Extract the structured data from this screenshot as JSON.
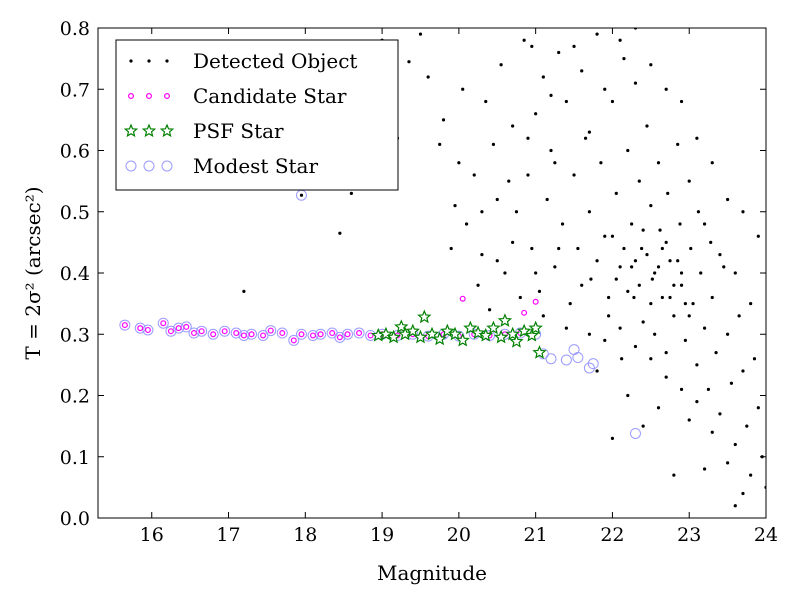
{
  "chart_data": {
    "type": "scatter",
    "xlabel": "Magnitude",
    "ylabel": "T = 2σ² (arcsec²)",
    "xlim": [
      15.3,
      24
    ],
    "ylim": [
      0.0,
      0.8
    ],
    "xticks": [
      "16",
      "17",
      "18",
      "19",
      "20",
      "21",
      "22",
      "23",
      "24"
    ],
    "yticks": [
      "0.0",
      "0.1",
      "0.2",
      "0.3",
      "0.4",
      "0.5",
      "0.6",
      "0.7",
      "0.8"
    ],
    "grid": false,
    "legend_position": "top-left",
    "series": [
      {
        "name": "Detected Object",
        "marker": "dot",
        "color": "#000000",
        "points": [
          [
            17.2,
            0.37
          ],
          [
            17.95,
            0.527
          ],
          [
            18.45,
            0.465
          ],
          [
            18.6,
            0.53
          ],
          [
            19.0,
            0.78
          ],
          [
            19.35,
            0.745
          ],
          [
            19.6,
            0.72
          ],
          [
            19.75,
            0.61
          ],
          [
            19.95,
            0.51
          ],
          [
            20.05,
            0.7
          ],
          [
            20.1,
            0.48
          ],
          [
            20.2,
            0.56
          ],
          [
            20.3,
            0.43
          ],
          [
            20.35,
            0.68
          ],
          [
            20.45,
            0.61
          ],
          [
            20.5,
            0.52
          ],
          [
            20.55,
            0.74
          ],
          [
            20.6,
            0.4
          ],
          [
            20.7,
            0.64
          ],
          [
            20.75,
            0.5
          ],
          [
            20.85,
            0.78
          ],
          [
            20.9,
            0.56
          ],
          [
            20.95,
            0.44
          ],
          [
            21.0,
            0.66
          ],
          [
            21.05,
            0.37
          ],
          [
            21.1,
            0.72
          ],
          [
            21.15,
            0.52
          ],
          [
            21.2,
            0.6
          ],
          [
            21.25,
            0.41
          ],
          [
            21.3,
            0.76
          ],
          [
            21.35,
            0.48
          ],
          [
            21.4,
            0.68
          ],
          [
            21.45,
            0.35
          ],
          [
            21.5,
            0.56
          ],
          [
            21.55,
            0.44
          ],
          [
            21.6,
            0.73
          ],
          [
            21.65,
            0.62
          ],
          [
            21.7,
            0.5
          ],
          [
            21.72,
            0.39
          ],
          [
            21.8,
            0.79
          ],
          [
            21.85,
            0.58
          ],
          [
            21.9,
            0.46
          ],
          [
            21.95,
            0.33
          ],
          [
            22.0,
            0.68
          ],
          [
            22.05,
            0.53
          ],
          [
            22.1,
            0.41
          ],
          [
            22.12,
            0.26
          ],
          [
            22.15,
            0.75
          ],
          [
            22.2,
            0.6
          ],
          [
            22.25,
            0.48
          ],
          [
            22.28,
            0.36
          ],
          [
            22.3,
            0.71
          ],
          [
            22.35,
            0.55
          ],
          [
            22.38,
            0.44
          ],
          [
            22.4,
            0.32
          ],
          [
            22.45,
            0.64
          ],
          [
            22.5,
            0.51
          ],
          [
            22.52,
            0.39
          ],
          [
            22.55,
            0.3
          ],
          [
            22.6,
            0.58
          ],
          [
            22.62,
            0.47
          ],
          [
            22.65,
            0.36
          ],
          [
            22.7,
            0.27
          ],
          [
            22.72,
            0.53
          ],
          [
            22.75,
            0.42
          ],
          [
            22.8,
            0.33
          ],
          [
            22.85,
            0.61
          ],
          [
            22.88,
            0.48
          ],
          [
            22.9,
            0.38
          ],
          [
            22.95,
            0.29
          ],
          [
            23.0,
            0.55
          ],
          [
            23.02,
            0.44
          ],
          [
            23.05,
            0.35
          ],
          [
            23.1,
            0.25
          ],
          [
            23.12,
            0.5
          ],
          [
            23.15,
            0.4
          ],
          [
            23.2,
            0.31
          ],
          [
            23.25,
            0.21
          ],
          [
            23.28,
            0.45
          ],
          [
            23.3,
            0.36
          ],
          [
            23.35,
            0.27
          ],
          [
            23.4,
            0.17
          ],
          [
            23.45,
            0.41
          ],
          [
            23.5,
            0.3
          ],
          [
            23.55,
            0.22
          ],
          [
            23.6,
            0.12
          ],
          [
            23.65,
            0.33
          ],
          [
            23.7,
            0.24
          ],
          [
            23.75,
            0.15
          ],
          [
            23.8,
            0.07
          ],
          [
            23.85,
            0.26
          ],
          [
            23.9,
            0.18
          ],
          [
            23.95,
            0.1
          ],
          [
            24.0,
            0.05
          ],
          [
            21.3,
            0.44
          ],
          [
            21.6,
            0.38
          ],
          [
            21.8,
            0.42
          ],
          [
            22.0,
            0.46
          ],
          [
            22.2,
            0.37
          ],
          [
            22.3,
            0.42
          ],
          [
            22.4,
            0.47
          ],
          [
            22.5,
            0.35
          ],
          [
            22.6,
            0.41
          ],
          [
            22.7,
            0.45
          ],
          [
            22.8,
            0.38
          ],
          [
            22.9,
            0.4
          ],
          [
            23.0,
            0.33
          ],
          [
            22.45,
            0.43
          ],
          [
            22.55,
            0.4
          ],
          [
            22.35,
            0.38
          ],
          [
            22.25,
            0.41
          ],
          [
            22.15,
            0.44
          ],
          [
            22.05,
            0.39
          ],
          [
            21.95,
            0.36
          ],
          [
            22.65,
            0.44
          ],
          [
            22.75,
            0.36
          ],
          [
            22.85,
            0.42
          ],
          [
            22.95,
            0.35
          ],
          [
            21.7,
            0.63
          ],
          [
            21.9,
            0.7
          ],
          [
            22.1,
            0.78
          ],
          [
            22.3,
            0.8
          ],
          [
            22.5,
            0.74
          ],
          [
            22.7,
            0.7
          ],
          [
            22.9,
            0.68
          ],
          [
            23.1,
            0.62
          ],
          [
            23.3,
            0.58
          ],
          [
            23.5,
            0.52
          ],
          [
            23.7,
            0.5
          ],
          [
            23.9,
            0.46
          ],
          [
            23.2,
            0.48
          ],
          [
            23.4,
            0.43
          ],
          [
            23.6,
            0.4
          ],
          [
            23.8,
            0.35
          ],
          [
            20.4,
            0.34
          ],
          [
            20.8,
            0.36
          ],
          [
            21.1,
            0.33
          ],
          [
            21.4,
            0.31
          ],
          [
            21.7,
            0.3
          ],
          [
            21.9,
            0.29
          ],
          [
            22.1,
            0.31
          ],
          [
            22.3,
            0.28
          ],
          [
            22.5,
            0.26
          ],
          [
            22.7,
            0.23
          ],
          [
            22.9,
            0.21
          ],
          [
            23.1,
            0.19
          ],
          [
            23.3,
            0.14
          ],
          [
            23.5,
            0.09
          ],
          [
            23.7,
            0.04
          ],
          [
            22.0,
            0.13
          ],
          [
            22.4,
            0.15
          ],
          [
            22.8,
            0.07
          ],
          [
            23.2,
            0.08
          ],
          [
            23.6,
            0.02
          ],
          [
            22.6,
            0.18
          ],
          [
            23.0,
            0.16
          ],
          [
            22.2,
            0.2
          ],
          [
            21.8,
            0.24
          ],
          [
            20.7,
            0.45
          ],
          [
            20.9,
            0.62
          ],
          [
            21.2,
            0.69
          ],
          [
            21.5,
            0.77
          ],
          [
            21.0,
            0.4
          ],
          [
            20.5,
            0.42
          ],
          [
            20.3,
            0.5
          ],
          [
            20.0,
            0.58
          ],
          [
            19.8,
            0.65
          ],
          [
            19.5,
            0.79
          ],
          [
            19.2,
            0.62
          ],
          [
            19.9,
            0.44
          ],
          [
            20.25,
            0.38
          ],
          [
            20.65,
            0.55
          ],
          [
            20.95,
            0.77
          ],
          [
            21.25,
            0.58
          ]
        ]
      },
      {
        "name": "Candidate Star",
        "marker": "small-circle",
        "color": "#ff00ff",
        "points": [
          [
            15.65,
            0.315
          ],
          [
            15.85,
            0.31
          ],
          [
            15.95,
            0.307
          ],
          [
            16.15,
            0.318
          ],
          [
            16.25,
            0.305
          ],
          [
            16.35,
            0.31
          ],
          [
            16.45,
            0.312
          ],
          [
            16.55,
            0.302
          ],
          [
            16.65,
            0.305
          ],
          [
            16.8,
            0.3
          ],
          [
            16.95,
            0.305
          ],
          [
            17.1,
            0.302
          ],
          [
            17.2,
            0.298
          ],
          [
            17.3,
            0.3
          ],
          [
            17.45,
            0.298
          ],
          [
            17.55,
            0.306
          ],
          [
            17.7,
            0.302
          ],
          [
            17.85,
            0.29
          ],
          [
            17.95,
            0.3
          ],
          [
            18.1,
            0.298
          ],
          [
            18.2,
            0.3
          ],
          [
            18.35,
            0.302
          ],
          [
            18.45,
            0.295
          ],
          [
            18.55,
            0.3
          ],
          [
            18.7,
            0.302
          ],
          [
            18.85,
            0.298
          ],
          [
            19.0,
            0.3
          ],
          [
            19.2,
            0.298
          ],
          [
            19.4,
            0.3
          ],
          [
            19.6,
            0.297
          ],
          [
            19.8,
            0.3
          ],
          [
            20.0,
            0.297
          ],
          [
            20.2,
            0.3
          ],
          [
            20.4,
            0.298
          ],
          [
            20.6,
            0.3
          ],
          [
            20.8,
            0.302
          ],
          [
            20.05,
            0.358
          ],
          [
            20.85,
            0.335
          ],
          [
            21.0,
            0.353
          ]
        ]
      },
      {
        "name": "PSF Star",
        "marker": "star",
        "color": "#008000",
        "points": [
          [
            18.95,
            0.298
          ],
          [
            19.05,
            0.3
          ],
          [
            19.15,
            0.295
          ],
          [
            19.25,
            0.312
          ],
          [
            19.3,
            0.3
          ],
          [
            19.4,
            0.305
          ],
          [
            19.5,
            0.295
          ],
          [
            19.55,
            0.328
          ],
          [
            19.65,
            0.3
          ],
          [
            19.75,
            0.292
          ],
          [
            19.85,
            0.305
          ],
          [
            19.95,
            0.3
          ],
          [
            20.05,
            0.29
          ],
          [
            20.15,
            0.31
          ],
          [
            20.25,
            0.302
          ],
          [
            20.35,
            0.298
          ],
          [
            20.45,
            0.31
          ],
          [
            20.55,
            0.295
          ],
          [
            20.6,
            0.322
          ],
          [
            20.7,
            0.3
          ],
          [
            20.75,
            0.288
          ],
          [
            20.85,
            0.305
          ],
          [
            20.95,
            0.298
          ],
          [
            21.0,
            0.31
          ],
          [
            21.05,
            0.27
          ]
        ]
      },
      {
        "name": "Modest Star",
        "marker": "large-circle",
        "color": "#9b9bff",
        "points": [
          [
            15.65,
            0.315
          ],
          [
            15.85,
            0.31
          ],
          [
            15.95,
            0.307
          ],
          [
            16.15,
            0.318
          ],
          [
            16.25,
            0.305
          ],
          [
            16.35,
            0.31
          ],
          [
            16.45,
            0.312
          ],
          [
            16.55,
            0.302
          ],
          [
            16.65,
            0.305
          ],
          [
            16.8,
            0.3
          ],
          [
            16.95,
            0.305
          ],
          [
            17.1,
            0.302
          ],
          [
            17.2,
            0.298
          ],
          [
            17.3,
            0.3
          ],
          [
            17.45,
            0.298
          ],
          [
            17.55,
            0.306
          ],
          [
            17.7,
            0.302
          ],
          [
            17.85,
            0.29
          ],
          [
            17.95,
            0.3
          ],
          [
            18.1,
            0.298
          ],
          [
            18.2,
            0.3
          ],
          [
            18.35,
            0.302
          ],
          [
            18.45,
            0.295
          ],
          [
            18.55,
            0.3
          ],
          [
            18.7,
            0.302
          ],
          [
            18.85,
            0.298
          ],
          [
            19.0,
            0.3
          ],
          [
            19.2,
            0.298
          ],
          [
            19.4,
            0.3
          ],
          [
            19.6,
            0.297
          ],
          [
            19.8,
            0.3
          ],
          [
            20.0,
            0.297
          ],
          [
            20.2,
            0.3
          ],
          [
            20.4,
            0.298
          ],
          [
            20.6,
            0.3
          ],
          [
            20.8,
            0.302
          ],
          [
            21.0,
            0.3
          ],
          [
            21.1,
            0.268
          ],
          [
            21.2,
            0.26
          ],
          [
            21.4,
            0.258
          ],
          [
            21.5,
            0.275
          ],
          [
            21.55,
            0.262
          ],
          [
            21.7,
            0.245
          ],
          [
            21.75,
            0.252
          ],
          [
            17.95,
            0.527
          ],
          [
            22.3,
            0.138
          ]
        ]
      }
    ]
  }
}
